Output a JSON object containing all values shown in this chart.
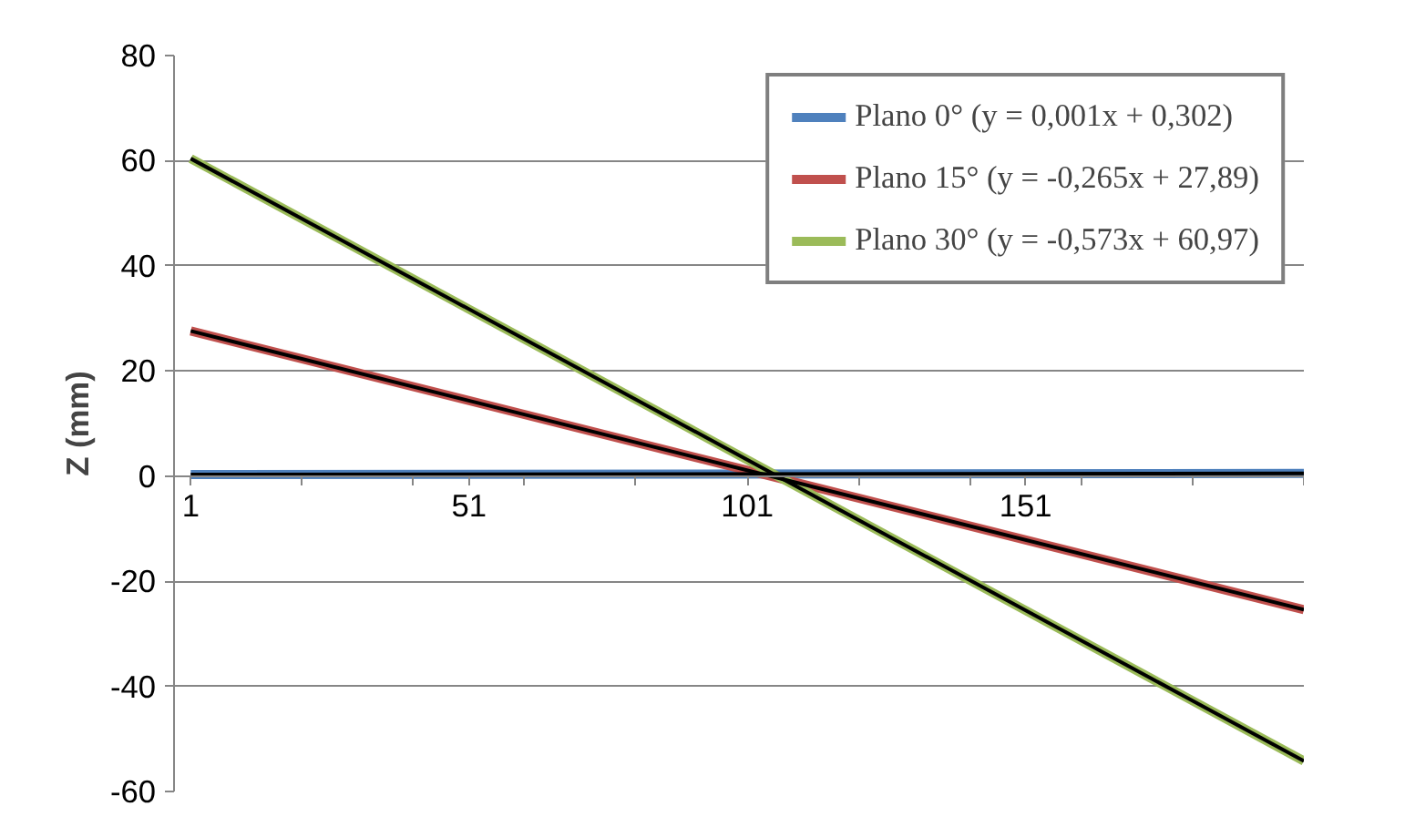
{
  "chart_data": {
    "type": "line",
    "ylabel": "Z (mm)",
    "x": [
      1,
      201
    ],
    "xlim": [
      -2,
      201
    ],
    "xticks": [
      {
        "value": 1,
        "label": "1"
      },
      {
        "value": 21,
        "label": null
      },
      {
        "value": 41,
        "label": null
      },
      {
        "value": 51,
        "label": "51"
      },
      {
        "value": 61,
        "label": null
      },
      {
        "value": 81,
        "label": null
      },
      {
        "value": 101,
        "label": "101"
      },
      {
        "value": 121,
        "label": null
      },
      {
        "value": 141,
        "label": null
      },
      {
        "value": 151,
        "label": "151"
      },
      {
        "value": 161,
        "label": null
      },
      {
        "value": 181,
        "label": null
      },
      {
        "value": 201,
        "label": null
      }
    ],
    "ylim": [
      -60,
      80
    ],
    "yticks": [
      -60,
      -40,
      -20,
      0,
      20,
      40,
      60,
      80
    ],
    "series": [
      {
        "name": "Plano 0° (y = 0,001x + 0,302)",
        "color": "#4f81bd",
        "values": [
          0.3,
          0.5
        ]
      },
      {
        "name": "Plano 15° (y = -0,265x + 27,89)",
        "color": "#c0504d",
        "values": [
          27.6,
          -25.4
        ]
      },
      {
        "name": "Plano 30° (y = -0,573x + 60,97)",
        "color": "#9bbb59",
        "values": [
          60.4,
          -54.2
        ]
      },
      {
        "color": "#000000",
        "values": [
          0.3,
          0.5
        ]
      },
      {
        "color": "#000000",
        "values": [
          27.6,
          -25.4
        ]
      },
      {
        "color": "#000000",
        "values": [
          60.4,
          -54.2
        ]
      }
    ],
    "grid": "y",
    "legend": "top right",
    "marker": "none",
    "line_style": "solid"
  }
}
